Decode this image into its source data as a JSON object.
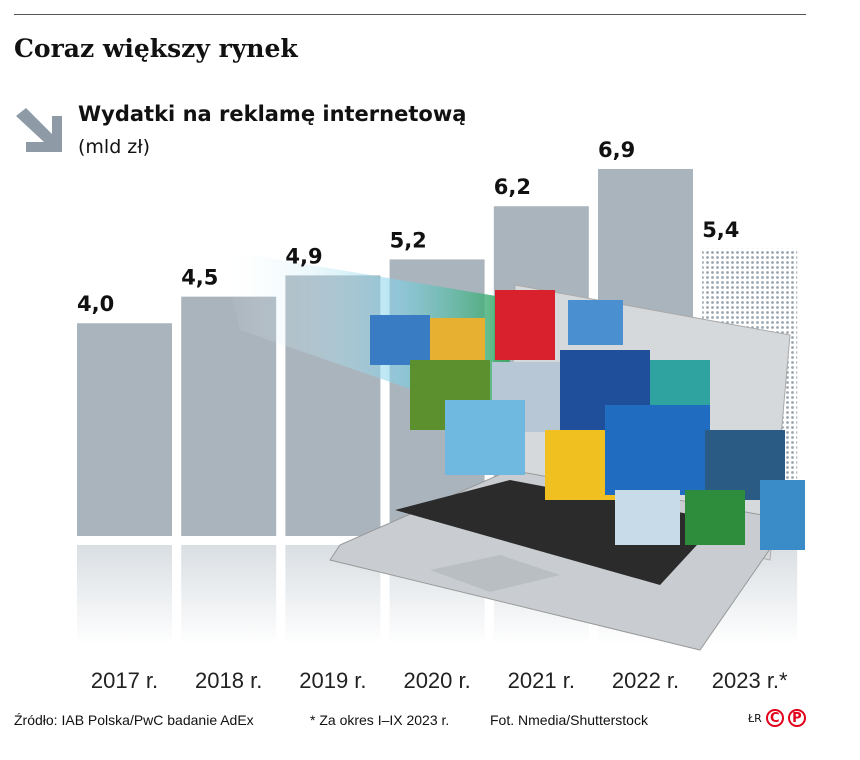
{
  "title": "Coraz większy rynek",
  "chart_data": {
    "type": "bar",
    "title": "Wydatki na reklamę internetową",
    "unit": "(mld zł)",
    "categories": [
      "2017 r.",
      "2018 r.",
      "2019 r.",
      "2020 r.",
      "2021 r.",
      "2022 r.",
      "2023 r.*"
    ],
    "values": [
      4.0,
      4.5,
      4.9,
      5.2,
      6.2,
      6.9,
      5.4
    ],
    "value_labels": [
      "4,0",
      "4,5",
      "4,9",
      "5,2",
      "6,2",
      "6,9",
      "5,4"
    ],
    "ylim": [
      0,
      6.9
    ],
    "grid": false,
    "bar_color": "#aab4bd",
    "highlight": "last bar dotted (partial year)"
  },
  "footer": {
    "source": "Źródło: IAB Polska/PwC badanie AdEx",
    "note": "* Za okres I–IX 2023 r.",
    "photo": "Fot. Nmedia/Shutterstock",
    "author": "ŁR",
    "logo": "CP"
  }
}
